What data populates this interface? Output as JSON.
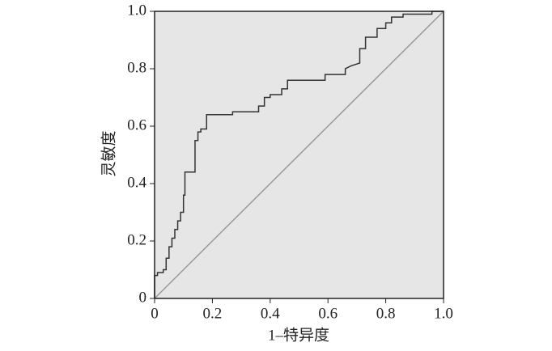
{
  "chart_data": {
    "type": "line",
    "xlabel": "1–特异度",
    "ylabel": "灵敏度",
    "xlim": [
      0,
      1
    ],
    "ylim": [
      0,
      1
    ],
    "xticks": [
      0,
      0.2,
      0.4,
      0.6,
      0.8,
      {
        "value": 1,
        "label": "1.0"
      }
    ],
    "yticks": [
      0,
      0.2,
      0.4,
      0.6,
      0.8,
      {
        "value": 1,
        "label": "1.0"
      }
    ],
    "background": "#e6e6e6",
    "series": [
      {
        "color": "#333333",
        "x": [
          0,
          0,
          0.01,
          0.01,
          0.03,
          0.03,
          0.04,
          0.04,
          0.05,
          0.05,
          0.06,
          0.06,
          0.07,
          0.07,
          0.08,
          0.08,
          0.09,
          0.09,
          0.1,
          0.1,
          0.105,
          0.105,
          0.14,
          0.14,
          0.15,
          0.15,
          0.16,
          0.16,
          0.18,
          0.18,
          0.27,
          0.27,
          0.36,
          0.36,
          0.38,
          0.38,
          0.4,
          0.4,
          0.44,
          0.44,
          0.46,
          0.46,
          0.59,
          0.59,
          0.66,
          0.66,
          0.68,
          0.71,
          0.71,
          0.73,
          0.73,
          0.77,
          0.77,
          0.8,
          0.8,
          0.82,
          0.82,
          0.86,
          0.86,
          0.96,
          0.96,
          1
        ],
        "values": [
          0,
          0.08,
          0.08,
          0.09,
          0.09,
          0.1,
          0.1,
          0.14,
          0.14,
          0.18,
          0.18,
          0.21,
          0.21,
          0.24,
          0.24,
          0.27,
          0.27,
          0.3,
          0.3,
          0.36,
          0.36,
          0.44,
          0.44,
          0.55,
          0.55,
          0.58,
          0.58,
          0.59,
          0.59,
          0.64,
          0.64,
          0.65,
          0.65,
          0.67,
          0.67,
          0.7,
          0.7,
          0.71,
          0.71,
          0.73,
          0.73,
          0.76,
          0.76,
          0.78,
          0.78,
          0.8,
          0.81,
          0.82,
          0.87,
          0.87,
          0.91,
          0.91,
          0.94,
          0.94,
          0.96,
          0.96,
          0.98,
          0.98,
          0.99,
          0.99,
          1,
          1
        ]
      },
      {
        "color": "#999999",
        "x": [
          0,
          1
        ],
        "values": [
          0,
          1
        ]
      }
    ]
  }
}
